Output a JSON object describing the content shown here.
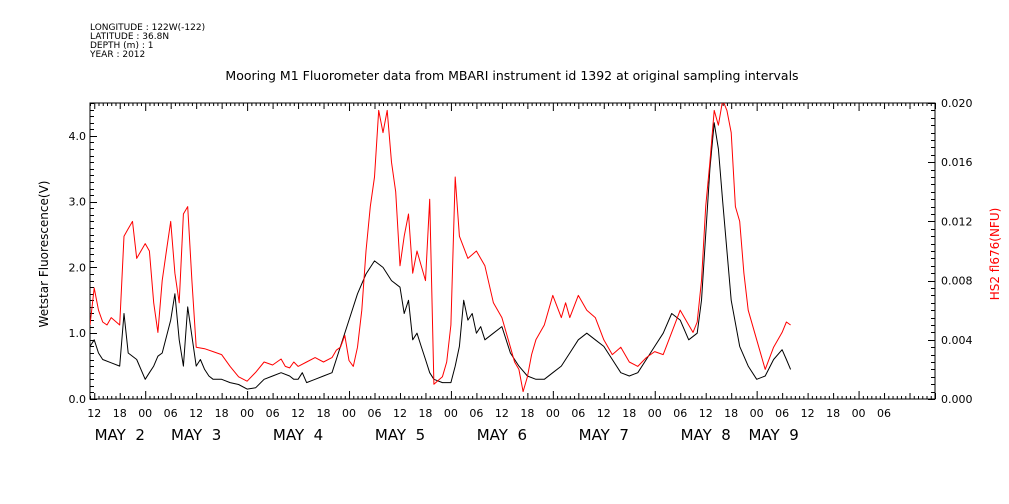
{
  "meta": {
    "lines": [
      "LONGITUDE : 122W(-122)",
      "LATITUDE : 36.8N",
      "DEPTH (m) : 1",
      "YEAR : 2012"
    ]
  },
  "chart_data": {
    "type": "line",
    "title": "Mooring M1 Fluorometer data from MBARI instrument id 1392 at original sampling intervals",
    "xlim_hours": [
      -13,
      186
    ],
    "x_note_units": "hours from 00:00 May 2, 2012",
    "hour_tick_labels": [
      "12",
      "18",
      "00",
      "06",
      "12",
      "18",
      "00",
      "06",
      "12",
      "18",
      "00",
      "06",
      "12",
      "18",
      "00",
      "06",
      "12",
      "18",
      "00",
      "06",
      "12",
      "18",
      "00",
      "06",
      "12",
      "18",
      "00",
      "06",
      "12",
      "18",
      "00",
      "06"
    ],
    "day_labels": [
      {
        "text": "MAY  2",
        "hour": -6
      },
      {
        "text": "MAY  3",
        "hour": 12
      },
      {
        "text": "MAY  4",
        "hour": 36
      },
      {
        "text": "MAY  5",
        "hour": 60
      },
      {
        "text": "MAY  6",
        "hour": 84
      },
      {
        "text": "MAY  7",
        "hour": 108
      },
      {
        "text": "MAY  8",
        "hour": 132
      },
      {
        "text": "MAY  9",
        "hour": 148
      }
    ],
    "y_left": {
      "label": "Wetstar Fluorescence(V)",
      "lim": [
        0,
        4.5
      ],
      "ticks": [
        "0.0",
        "1.0",
        "2.0",
        "3.0",
        "4.0"
      ],
      "tick_values": [
        0,
        1,
        2,
        3,
        4
      ]
    },
    "y_right": {
      "label": "HS2 fl676(NFU)",
      "color": "#ff0000",
      "lim": [
        0,
        0.02
      ],
      "ticks": [
        "0.000",
        "0.004",
        "0.008",
        "0.012",
        "0.016",
        "0.020"
      ],
      "tick_values": [
        0,
        0.004,
        0.008,
        0.012,
        0.016,
        0.02
      ]
    },
    "series": [
      {
        "axis": "left",
        "color": "#000000",
        "x": [
          -13,
          -12,
          -11,
          -10,
          -8,
          -6,
          -5,
          -4,
          -2,
          0,
          1,
          2,
          3,
          4,
          6,
          7,
          8,
          9,
          10,
          12,
          13,
          14,
          15,
          16,
          18,
          20,
          22,
          24,
          26,
          28,
          30,
          32,
          34,
          35,
          36,
          37,
          38,
          40,
          42,
          44,
          46,
          48,
          50,
          52,
          54,
          56,
          58,
          60,
          61,
          62,
          63,
          64,
          65,
          66,
          67,
          68,
          70,
          72,
          73,
          74,
          75,
          76,
          77,
          78,
          79,
          80,
          82,
          84,
          86,
          88,
          90,
          92,
          94,
          96,
          98,
          100,
          102,
          104,
          106,
          108,
          110,
          112,
          114,
          116,
          118,
          120,
          122,
          124,
          126,
          128,
          130,
          131,
          132,
          133,
          134,
          135,
          136,
          138,
          140,
          142,
          144,
          146,
          148,
          150,
          151,
          152
        ],
        "y": [
          0.8,
          0.9,
          0.7,
          0.6,
          0.55,
          0.5,
          1.3,
          0.7,
          0.6,
          0.3,
          0.4,
          0.5,
          0.65,
          0.7,
          1.2,
          1.6,
          0.9,
          0.5,
          1.4,
          0.5,
          0.6,
          0.45,
          0.35,
          0.3,
          0.3,
          0.25,
          0.22,
          0.15,
          0.17,
          0.3,
          0.35,
          0.4,
          0.35,
          0.3,
          0.3,
          0.4,
          0.25,
          0.3,
          0.35,
          0.4,
          0.8,
          1.2,
          1.6,
          1.9,
          2.1,
          2.0,
          1.8,
          1.7,
          1.3,
          1.5,
          0.9,
          1.0,
          0.8,
          0.6,
          0.4,
          0.3,
          0.25,
          0.25,
          0.5,
          0.8,
          1.5,
          1.2,
          1.3,
          1.0,
          1.1,
          0.9,
          1.0,
          1.1,
          0.7,
          0.5,
          0.35,
          0.3,
          0.3,
          0.4,
          0.5,
          0.7,
          0.9,
          1.0,
          0.9,
          0.8,
          0.6,
          0.4,
          0.35,
          0.4,
          0.6,
          0.8,
          1.0,
          1.3,
          1.2,
          0.9,
          1.0,
          1.5,
          2.5,
          3.5,
          4.2,
          3.8,
          3.0,
          1.5,
          0.8,
          0.5,
          0.3,
          0.35,
          0.6,
          0.75,
          0.6,
          0.45
        ]
      },
      {
        "axis": "right",
        "color": "#ff0000",
        "x": [
          -13,
          -12,
          -11,
          -10,
          -9,
          -8,
          -6,
          -5,
          -4,
          -3,
          -2,
          0,
          1,
          2,
          3,
          4,
          5,
          6,
          7,
          8,
          9,
          10,
          11,
          12,
          14,
          16,
          18,
          20,
          22,
          24,
          26,
          28,
          30,
          32,
          33,
          34,
          35,
          36,
          38,
          40,
          42,
          44,
          45,
          46,
          47,
          48,
          49,
          50,
          51,
          52,
          53,
          54,
          55,
          56,
          57,
          58,
          59,
          60,
          61,
          62,
          63,
          64,
          66,
          67,
          68,
          70,
          71,
          72,
          73,
          74,
          76,
          78,
          80,
          82,
          84,
          86,
          87,
          88,
          89,
          90,
          91,
          92,
          94,
          96,
          98,
          99,
          100,
          102,
          104,
          106,
          108,
          110,
          112,
          114,
          116,
          118,
          120,
          122,
          124,
          126,
          128,
          129,
          130,
          131,
          132,
          133,
          134,
          135,
          136,
          137,
          138,
          139,
          140,
          141,
          142,
          144,
          146,
          148,
          150,
          151,
          152
        ],
        "y": [
          0.005,
          0.0075,
          0.006,
          0.0052,
          0.005,
          0.0055,
          0.005,
          0.011,
          0.0115,
          0.012,
          0.0095,
          0.0105,
          0.01,
          0.0065,
          0.0045,
          0.008,
          0.01,
          0.012,
          0.0085,
          0.0065,
          0.0125,
          0.013,
          0.008,
          0.0035,
          0.0034,
          0.0032,
          0.003,
          0.0022,
          0.0015,
          0.0012,
          0.0018,
          0.0025,
          0.0023,
          0.0027,
          0.0022,
          0.0021,
          0.0025,
          0.0022,
          0.0025,
          0.0028,
          0.0025,
          0.0028,
          0.0033,
          0.0035,
          0.0043,
          0.0026,
          0.0022,
          0.0035,
          0.006,
          0.01,
          0.013,
          0.015,
          0.0195,
          0.018,
          0.0195,
          0.016,
          0.014,
          0.009,
          0.011,
          0.0125,
          0.0085,
          0.01,
          0.008,
          0.0135,
          0.001,
          0.0015,
          0.0025,
          0.005,
          0.015,
          0.011,
          0.0095,
          0.01,
          0.009,
          0.0065,
          0.0055,
          0.0035,
          0.0025,
          0.002,
          0.0005,
          0.0015,
          0.003,
          0.004,
          0.005,
          0.007,
          0.0055,
          0.0065,
          0.0055,
          0.007,
          0.006,
          0.0055,
          0.004,
          0.003,
          0.0035,
          0.0025,
          0.0022,
          0.0028,
          0.0032,
          0.003,
          0.0045,
          0.006,
          0.005,
          0.0045,
          0.0052,
          0.008,
          0.013,
          0.016,
          0.0195,
          0.0185,
          0.0202,
          0.0195,
          0.018,
          0.013,
          0.012,
          0.0085,
          0.006,
          0.004,
          0.002,
          0.0035,
          0.0045,
          0.0052,
          0.005
        ]
      }
    ],
    "grid": false,
    "legend": "none"
  }
}
